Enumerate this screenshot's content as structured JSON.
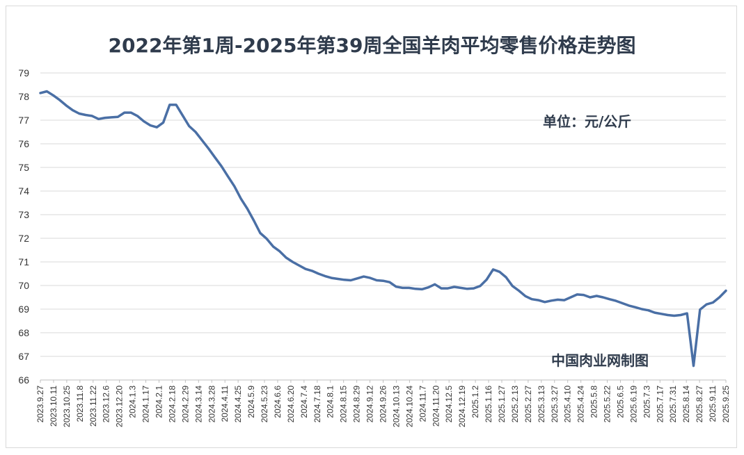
{
  "chart_data": {
    "type": "line",
    "title": "2022年第1周-2025年第39周全国羊肉平均零售价格走势图",
    "unit": "单位：元/公斤",
    "source": "中国肉业网制图",
    "ylim": [
      66,
      79
    ],
    "y_ticks": [
      66,
      67,
      68,
      69,
      70,
      71,
      72,
      73,
      74,
      75,
      76,
      77,
      78,
      79
    ],
    "grid": true,
    "x_tick_labels": [
      "2023.9.27",
      "2023.10.11",
      "2023.10.25",
      "2023.11.8",
      "2023.11.22",
      "2023.12.6",
      "2023.12.20",
      "2024.1.3",
      "2024.1.17",
      "2024.2.1",
      "2024.2.18",
      "2024.2.29",
      "2024.3.14",
      "2024.3.28",
      "2024.4.11",
      "2024.4.25",
      "2024.5.9",
      "2024.5.23",
      "2024.6.6",
      "2024.6.20",
      "2024.7.4",
      "2024.7.18",
      "2024.8.1",
      "2024.8.15",
      "2024.8.29",
      "2024.9.12",
      "2024.9.26",
      "2024.10.13",
      "2024.10.24",
      "2024.11.7",
      "2024.11.20",
      "2024.12.5",
      "2024.12.19",
      "2025.1.2",
      "2025.1.16",
      "2025.1.27",
      "2025.2.13",
      "2025.2.27",
      "2025.3.13",
      "2025.3.27",
      "2025.4.10",
      "2025.4.24",
      "2025.5.8",
      "2025.5.22",
      "2025.6.5",
      "2025.6.19",
      "2025.7.3",
      "2025.7.17",
      "2025.7.31",
      "2025.8.14",
      "2025.8.27",
      "2025.9.11",
      "2025.9.25"
    ],
    "series": [
      {
        "color": "#4a6fa5",
        "values": [
          78.15,
          78.22,
          78.05,
          77.85,
          77.62,
          77.42,
          77.28,
          77.22,
          77.18,
          77.05,
          77.1,
          77.12,
          77.14,
          77.32,
          77.32,
          77.18,
          76.95,
          76.78,
          76.7,
          76.9,
          77.65,
          77.65,
          77.2,
          76.75,
          76.5,
          76.15,
          75.8,
          75.42,
          75.05,
          74.62,
          74.2,
          73.68,
          73.25,
          72.75,
          72.22,
          71.98,
          71.65,
          71.45,
          71.18,
          71.0,
          70.85,
          70.7,
          70.62,
          70.5,
          70.4,
          70.32,
          70.28,
          70.24,
          70.22,
          70.3,
          70.38,
          70.32,
          70.22,
          70.2,
          70.14,
          69.95,
          69.9,
          69.9,
          69.86,
          69.84,
          69.92,
          70.05,
          69.88,
          69.88,
          69.94,
          69.9,
          69.86,
          69.88,
          69.98,
          70.25,
          70.68,
          70.58,
          70.35,
          69.98,
          69.78,
          69.55,
          69.42,
          69.38,
          69.3,
          69.36,
          69.4,
          69.38,
          69.5,
          69.62,
          69.6,
          69.5,
          69.56,
          69.5,
          69.42,
          69.35,
          69.25,
          69.15,
          69.08,
          69.0,
          68.95,
          68.85,
          68.8,
          68.75,
          68.72,
          68.75,
          68.82,
          66.6,
          68.98,
          69.2,
          69.28,
          69.5,
          69.78
        ]
      }
    ]
  }
}
